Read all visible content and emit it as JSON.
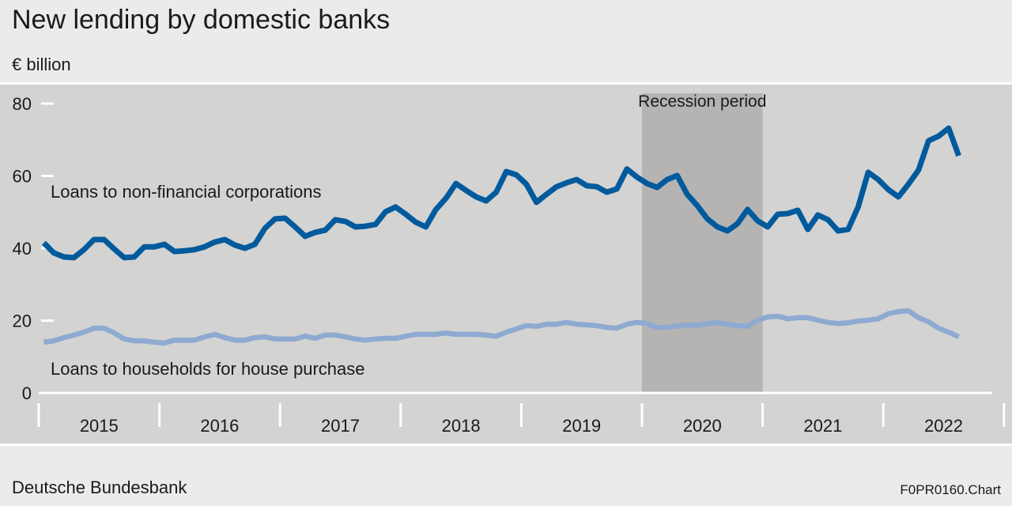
{
  "header": {
    "title": "New lending by domestic banks",
    "unit": "€ billion"
  },
  "footer": {
    "source": "Deutsche Bundesbank",
    "chart_code": "F0PR0160.Chart"
  },
  "chart_data": {
    "type": "line",
    "title": "New lending by domestic banks",
    "ylabel": "€ billion",
    "ylim": [
      0,
      80
    ],
    "yticks": [
      0,
      20,
      40,
      60,
      80
    ],
    "x_start": "2015-01",
    "x_end": "2022-08",
    "frequency": "monthly",
    "xtick_labels": [
      "2015",
      "2016",
      "2017",
      "2018",
      "2019",
      "2020",
      "2021",
      "2022"
    ],
    "shaded_region": {
      "label": "Recession period",
      "from": "2020-01",
      "to": "2020-12",
      "color": "#b5b4b3"
    },
    "grid": false,
    "series": [
      {
        "name": "Loans to non-financial corporations",
        "color": "#005a9c",
        "values": [
          41.5,
          38.7,
          37.6,
          37.4,
          39.6,
          42.4,
          42.4,
          39.8,
          37.4,
          37.6,
          40.4,
          40.4,
          41.1,
          39.1,
          39.3,
          39.6,
          40.4,
          41.7,
          42.4,
          40.9,
          40.0,
          41.1,
          45.5,
          48.1,
          48.3,
          45.9,
          43.3,
          44.4,
          45.0,
          47.9,
          47.4,
          45.9,
          46.1,
          46.6,
          50.1,
          51.4,
          49.4,
          47.2,
          45.9,
          50.7,
          53.8,
          57.9,
          56.0,
          54.2,
          53.1,
          55.5,
          61.2,
          60.3,
          57.7,
          52.7,
          54.9,
          57.0,
          58.1,
          59.0,
          57.3,
          57.0,
          55.5,
          56.4,
          61.9,
          59.7,
          57.9,
          56.8,
          59.0,
          60.1,
          54.9,
          51.8,
          48.1,
          45.9,
          44.8,
          46.8,
          50.7,
          47.6,
          45.9,
          49.4,
          49.6,
          50.5,
          45.2,
          49.2,
          47.9,
          44.8,
          45.2,
          51.4,
          61.0,
          59.0,
          56.2,
          54.2,
          57.7,
          61.6,
          69.7,
          71.0,
          73.2,
          65.6
        ]
      },
      {
        "name": "Loans to households for house purchase",
        "color": "#8eaad1",
        "values": [
          14.0,
          14.4,
          15.3,
          16.0,
          16.8,
          17.9,
          17.9,
          16.6,
          14.9,
          14.4,
          14.4,
          14.0,
          13.8,
          14.6,
          14.6,
          14.6,
          15.5,
          16.2,
          15.3,
          14.6,
          14.6,
          15.3,
          15.5,
          14.9,
          14.9,
          14.9,
          15.7,
          15.1,
          16.0,
          16.0,
          15.5,
          14.9,
          14.6,
          14.9,
          15.1,
          15.1,
          15.7,
          16.2,
          16.2,
          16.2,
          16.6,
          16.2,
          16.2,
          16.2,
          16.0,
          15.7,
          16.8,
          17.7,
          18.6,
          18.4,
          19.0,
          19.0,
          19.5,
          19.0,
          18.8,
          18.6,
          18.1,
          17.9,
          19.0,
          19.5,
          19.2,
          18.0,
          18.2,
          18.5,
          18.8,
          18.7,
          19.2,
          19.4,
          19.0,
          18.6,
          18.4,
          20.1,
          21.0,
          21.2,
          20.5,
          20.8,
          20.8,
          20.1,
          19.5,
          19.2,
          19.4,
          19.9,
          20.1,
          20.5,
          21.9,
          22.5,
          22.7,
          20.8,
          19.7,
          17.9,
          16.8,
          15.5
        ]
      }
    ]
  }
}
